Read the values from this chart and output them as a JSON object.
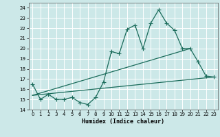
{
  "xlabel": "Humidex (Indice chaleur)",
  "xlim": [
    -0.5,
    23.5
  ],
  "ylim": [
    14,
    24.5
  ],
  "yticks": [
    14,
    15,
    16,
    17,
    18,
    19,
    20,
    21,
    22,
    23,
    24
  ],
  "xticks": [
    0,
    1,
    2,
    3,
    4,
    5,
    6,
    7,
    8,
    9,
    10,
    11,
    12,
    13,
    14,
    15,
    16,
    17,
    18,
    19,
    20,
    21,
    22,
    23
  ],
  "bg_color": "#cce8e8",
  "grid_color": "#ffffff",
  "line_color": "#1a6b5a",
  "main_series_x": [
    0,
    1,
    2,
    3,
    4,
    5,
    6,
    7,
    8,
    9,
    10,
    11,
    12,
    13,
    14,
    15,
    16,
    17,
    18,
    19,
    20,
    21,
    22,
    23
  ],
  "main_series_y": [
    16.5,
    15.0,
    15.5,
    15.0,
    15.0,
    15.2,
    14.7,
    14.5,
    15.2,
    16.7,
    19.7,
    19.5,
    21.9,
    22.3,
    20.0,
    22.5,
    23.8,
    22.5,
    21.8,
    20.0,
    20.0,
    18.7,
    17.3,
    17.2
  ],
  "lower_line_x": [
    0,
    23
  ],
  "lower_line_y": [
    15.4,
    17.2
  ],
  "upper_line_x": [
    0,
    20
  ],
  "upper_line_y": [
    15.4,
    20.0
  ],
  "marker": "+",
  "markersize": 4,
  "linewidth": 0.9
}
